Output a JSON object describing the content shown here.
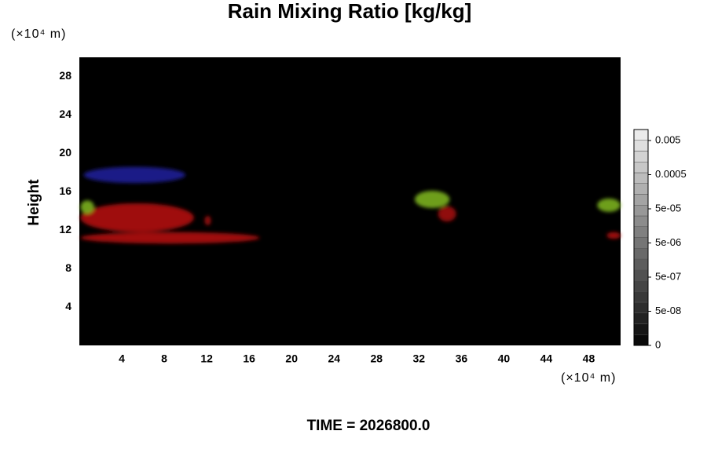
{
  "chart_data": {
    "type": "contour",
    "title": "Rain Mixing Ratio [kg/kg]",
    "ylabel": "Height",
    "x_unit": "(×10⁴ m)",
    "y_unit": "(×10⁴ m)",
    "footer": "TIME = 2026800.0",
    "xlim": [
      0,
      51
    ],
    "xticks": [
      4,
      8,
      12,
      16,
      20,
      24,
      28,
      32,
      36,
      40,
      44,
      48
    ],
    "ylim": [
      0,
      30
    ],
    "yticks": [
      4,
      8,
      12,
      16,
      20,
      24,
      28
    ],
    "background": "#000000",
    "features": [
      {
        "x": [
          0.4,
          10
        ],
        "y": [
          16.9,
          18.6
        ],
        "color": "#1e1e96"
      },
      {
        "x": [
          0.1,
          10.8
        ],
        "y": [
          11.8,
          14.8
        ],
        "color": "#b01212"
      },
      {
        "x": [
          0.1,
          17
        ],
        "y": [
          10.6,
          11.8
        ],
        "color": "#b01212"
      },
      {
        "x": [
          11.8,
          12.4
        ],
        "y": [
          12.5,
          13.5
        ],
        "color": "#a01010"
      },
      {
        "x": [
          0.1,
          1.4
        ],
        "y": [
          13.7,
          15.1
        ],
        "color": "#7ab020"
      },
      {
        "x": [
          31.6,
          34.9
        ],
        "y": [
          14.3,
          16.1
        ],
        "color": "#7ab020"
      },
      {
        "x": [
          33.8,
          35.5
        ],
        "y": [
          12.9,
          14.5
        ],
        "color": "#a01010"
      },
      {
        "x": [
          48.8,
          51
        ],
        "y": [
          13.9,
          15.3
        ],
        "color": "#7ab020"
      },
      {
        "x": [
          49.7,
          51
        ],
        "y": [
          11.1,
          11.8
        ],
        "color": "#b01212"
      }
    ],
    "colorbar": {
      "ticks": [
        0,
        {
          "value": 5e-08,
          "label": "5e-08"
        },
        {
          "value": 5e-07,
          "label": "5e-07"
        },
        {
          "value": 5e-06,
          "label": "5e-06"
        },
        {
          "value": 5e-05,
          "label": "5e-05"
        },
        0.0005,
        0.005
      ]
    }
  }
}
